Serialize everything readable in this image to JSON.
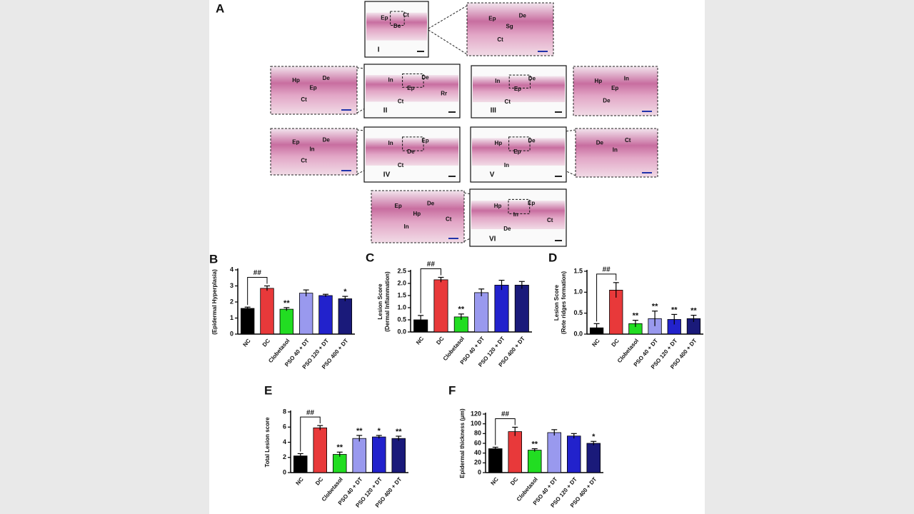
{
  "histology": {
    "panel": "A",
    "images": [
      {
        "numeral": "I",
        "labels": [
          "Ep",
          "De",
          "Ct"
        ]
      },
      {
        "numeral": "II",
        "labels": [
          "In",
          "Ep",
          "De",
          "Ct",
          "Rr"
        ]
      },
      {
        "numeral": "III",
        "labels": [
          "In",
          "Ep",
          "De",
          "Ct"
        ]
      },
      {
        "numeral": "IV",
        "labels": [
          "In",
          "De",
          "Ep",
          "Ct"
        ]
      },
      {
        "numeral": "V",
        "labels": [
          "Hp",
          "Ep",
          "De",
          "In"
        ]
      },
      {
        "numeral": "VI",
        "labels": [
          "Hp",
          "In",
          "Ep",
          "De",
          "Ct"
        ]
      }
    ],
    "insets": [
      {
        "labels": [
          "Ep",
          "Sg",
          "De",
          "Ct"
        ]
      },
      {
        "labels": [
          "Hp",
          "Ep",
          "De",
          "Ct"
        ]
      },
      {
        "labels": [
          "Hp",
          "Ep",
          "In",
          "De"
        ]
      },
      {
        "labels": [
          "Ep",
          "In",
          "De",
          "Ct"
        ]
      },
      {
        "labels": [
          "De",
          "In",
          "Ct"
        ]
      },
      {
        "labels": [
          "Ep",
          "Hp",
          "De",
          "In",
          "Ct"
        ]
      }
    ]
  },
  "chart_data": [
    {
      "type": "bar",
      "panel": "B",
      "y_label": [
        "(Epidermal Hyperplasia)"
      ],
      "categories": [
        "NC",
        "DC",
        "Clobetasol",
        "PSO 40 + DT",
        "PSO 120 + DT",
        "PSO 400 + DT"
      ],
      "values": [
        1.6,
        2.85,
        1.55,
        2.55,
        2.4,
        2.2
      ],
      "errors": [
        0.08,
        0.15,
        0.1,
        0.2,
        0.08,
        0.15
      ],
      "colors": [
        "#000000",
        "#e8393a",
        "#22dd22",
        "#9999ee",
        "#2222cc",
        "#1a1a7a"
      ],
      "significance": [
        null,
        null,
        "**",
        null,
        null,
        "*"
      ],
      "comparison_label": "##",
      "ylim": [
        0,
        4
      ],
      "yticks": [
        0,
        1,
        2,
        3,
        4
      ]
    },
    {
      "type": "bar",
      "panel": "C",
      "y_label": [
        "Lesion Score",
        "(Dermal Inflammation)"
      ],
      "categories": [
        "NC",
        "DC",
        "Clobetasol",
        "PSO 40 + DT",
        "PSO 120 + DT",
        "PSO 400 + DT"
      ],
      "values": [
        0.5,
        2.15,
        0.62,
        1.62,
        1.93,
        1.93
      ],
      "errors": [
        0.18,
        0.1,
        0.12,
        0.15,
        0.2,
        0.15
      ],
      "colors": [
        "#000000",
        "#e8393a",
        "#22dd22",
        "#9999ee",
        "#2222cc",
        "#1a1a7a"
      ],
      "significance": [
        null,
        null,
        "**",
        null,
        null,
        null
      ],
      "comparison_label": "##",
      "ylim": [
        0,
        2.5
      ],
      "yticks": [
        {
          "value": 0,
          "label": "0.0"
        },
        0.5,
        {
          "value": 1,
          "label": "1.0"
        },
        1.5,
        {
          "value": 2,
          "label": "2.0"
        },
        2.5
      ]
    },
    {
      "type": "bar",
      "panel": "D",
      "y_label": [
        "Lesion Score",
        "(Rete ridges formation)"
      ],
      "categories": [
        "NC",
        "DC",
        "Clobetasol",
        "PSO 40 + DT",
        "PSO 120 + DT",
        "PSO 400 + DT"
      ],
      "values": [
        0.15,
        1.05,
        0.25,
        0.37,
        0.35,
        0.37
      ],
      "errors": [
        0.1,
        0.18,
        0.08,
        0.18,
        0.12,
        0.08
      ],
      "colors": [
        "#000000",
        "#e8393a",
        "#22dd22",
        "#9999ee",
        "#2222cc",
        "#1a1a7a"
      ],
      "significance": [
        null,
        null,
        "**",
        "**",
        "**",
        "**"
      ],
      "comparison_label": "##",
      "ylim": [
        0,
        1.5
      ],
      "yticks": [
        {
          "value": 0,
          "label": "0.0"
        },
        0.5,
        {
          "value": 1,
          "label": "1.0"
        },
        1.5
      ]
    },
    {
      "type": "bar",
      "panel": "E",
      "y_label": [
        "Total Lesion score"
      ],
      "categories": [
        "NC",
        "DC",
        "Clobetasol",
        "PSO 40 + DT",
        "PSO 120 + DT",
        "PSO 400 + DT"
      ],
      "values": [
        2.2,
        5.9,
        2.4,
        4.5,
        4.7,
        4.5
      ],
      "errors": [
        0.3,
        0.3,
        0.3,
        0.4,
        0.2,
        0.3
      ],
      "colors": [
        "#000000",
        "#e8393a",
        "#22dd22",
        "#9999ee",
        "#2222cc",
        "#1a1a7a"
      ],
      "significance": [
        null,
        null,
        "**",
        "**",
        "*",
        "**"
      ],
      "comparison_label": "##",
      "ylim": [
        0,
        8
      ],
      "yticks": [
        0,
        2,
        4,
        6,
        8
      ]
    },
    {
      "type": "bar",
      "panel": "F",
      "y_label": [
        "Epidermal thickness (μm)"
      ],
      "categories": [
        "NC",
        "DC",
        "Clobetasol",
        "PSO 40 + DT",
        "PSO 120 + DT",
        "PSO 400 + DT"
      ],
      "values": [
        49,
        84,
        46,
        82,
        75,
        60
      ],
      "errors": [
        3,
        9,
        3,
        6,
        5,
        4
      ],
      "colors": [
        "#000000",
        "#e8393a",
        "#22dd22",
        "#9999ee",
        "#2222cc",
        "#1a1a7a"
      ],
      "significance": [
        null,
        null,
        "**",
        null,
        null,
        "*"
      ],
      "comparison_label": "##",
      "ylim": [
        0,
        120
      ],
      "yticks": [
        0,
        20,
        40,
        60,
        80,
        100,
        120
      ]
    }
  ]
}
